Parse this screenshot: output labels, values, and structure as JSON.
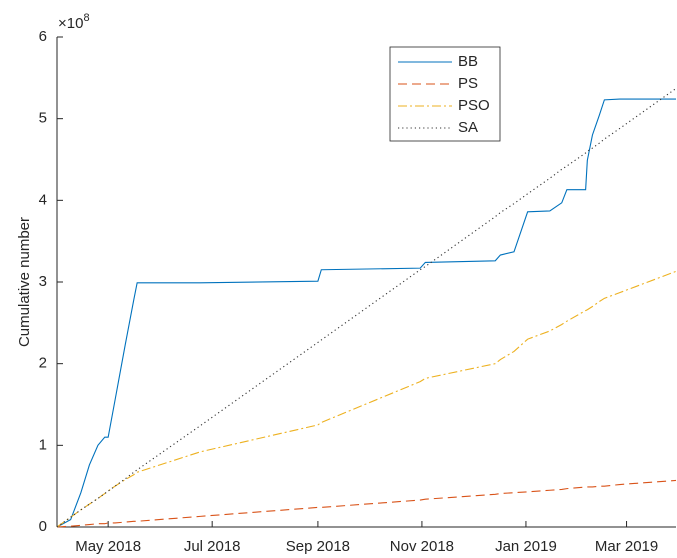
{
  "chart_data": {
    "type": "line",
    "ylabel": "Cumulative number",
    "y_multiplier": "×10",
    "y_multiplier_exponent": "8",
    "x": [
      0,
      8,
      14,
      19,
      24,
      28,
      30,
      34,
      40,
      45,
      47,
      84,
      153,
      155,
      213,
      216,
      257,
      260,
      268,
      276,
      289,
      296,
      299,
      310,
      311,
      314,
      318,
      321,
      330,
      363
    ],
    "xlim": [
      0,
      363
    ],
    "xticks": [
      {
        "value": 30,
        "label": "May 2018"
      },
      {
        "value": 91,
        "label": "Jul 2018"
      },
      {
        "value": 153,
        "label": "Sep 2018"
      },
      {
        "value": 214,
        "label": "Nov 2018"
      },
      {
        "value": 275,
        "label": "Jan 2019"
      },
      {
        "value": 334,
        "label": "Mar 2019"
      }
    ],
    "ylim": [
      0,
      6
    ],
    "yticks": [
      0,
      1,
      2,
      3,
      4,
      5,
      6
    ],
    "legend": "north",
    "series": [
      {
        "name": "BB",
        "color": "#0072bd",
        "style": "solid",
        "values": [
          0,
          0.09,
          0.42,
          0.76,
          1.0,
          1.1,
          1.1,
          1.55,
          2.23,
          2.78,
          2.99,
          2.99,
          3.01,
          3.15,
          3.17,
          3.24,
          3.26,
          3.33,
          3.37,
          3.86,
          3.87,
          3.97,
          4.13,
          4.13,
          4.49,
          4.8,
          5.04,
          5.23,
          5.24,
          5.24
        ]
      },
      {
        "name": "PS",
        "color": "#d95319",
        "style": "dashed",
        "values": [
          0,
          0.01,
          0.02,
          0.03,
          0.04,
          0.04,
          0.05,
          0.05,
          0.06,
          0.07,
          0.07,
          0.13,
          0.24,
          0.24,
          0.33,
          0.34,
          0.4,
          0.41,
          0.42,
          0.43,
          0.45,
          0.46,
          0.47,
          0.49,
          0.49,
          0.49,
          0.5,
          0.5,
          0.52,
          0.57
        ]
      },
      {
        "name": "PSO",
        "color": "#edb120",
        "style": "dashdot",
        "values": [
          0,
          0.12,
          0.21,
          0.28,
          0.35,
          0.41,
          0.44,
          0.5,
          0.58,
          0.64,
          0.67,
          0.92,
          1.25,
          1.28,
          1.78,
          1.82,
          2.0,
          2.05,
          2.15,
          2.3,
          2.4,
          2.48,
          2.52,
          2.65,
          2.66,
          2.7,
          2.76,
          2.8,
          2.87,
          3.13
        ]
      },
      {
        "name": "SA",
        "color": "#333333",
        "style": "dotted",
        "values": [
          0,
          0.12,
          0.21,
          0.28,
          0.35,
          0.41,
          0.44,
          0.5,
          0.59,
          0.67,
          0.7,
          1.24,
          2.26,
          2.29,
          3.15,
          3.19,
          3.8,
          3.85,
          3.96,
          4.08,
          4.27,
          4.38,
          4.42,
          4.58,
          4.6,
          4.64,
          4.7,
          4.75,
          4.88,
          5.37
        ]
      }
    ]
  }
}
